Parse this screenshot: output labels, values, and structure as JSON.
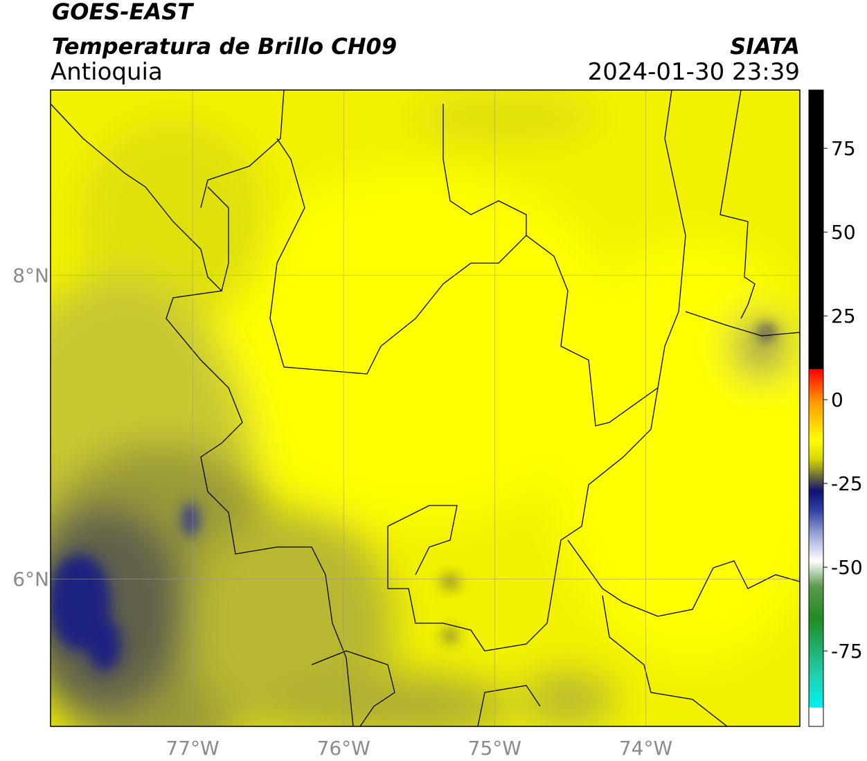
{
  "header": {
    "title": "GOES-EAST",
    "product": "Temperatura de Brillo CH09",
    "region": "Antioquia",
    "source": "SIATA",
    "datetime": "2024-01-30 23:39"
  },
  "map": {
    "xlim": [
      -77.94,
      -72.98
    ],
    "ylim": [
      5.03,
      9.22
    ],
    "xticks": [
      {
        "value": -77,
        "label": "77°W"
      },
      {
        "value": -76,
        "label": "76°W"
      },
      {
        "value": -75,
        "label": "75°W"
      },
      {
        "value": -74,
        "label": "74°W"
      }
    ],
    "yticks": [
      {
        "value": 8,
        "label": "8°N"
      },
      {
        "value": 6,
        "label": "6°N"
      }
    ],
    "grid": true
  },
  "colorbar": {
    "lim": [
      -97.5,
      92.4
    ],
    "ticks": [
      75,
      50,
      25,
      0,
      -25,
      -50,
      -75
    ]
  }
}
